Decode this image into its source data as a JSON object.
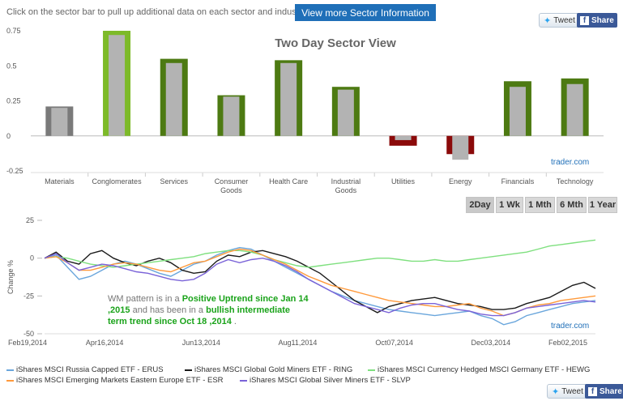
{
  "header": {
    "hint": "Click on the sector bar to pull up additional data on each sector and industry",
    "more_button": "View more Sector Information",
    "tweet_label": "Tweet",
    "share_label": "Share"
  },
  "footer": {
    "tweet_label": "Tweet",
    "share_label": "Share"
  },
  "range_buttons": [
    "2Day",
    "1 Wk",
    "1 Mth",
    "6 Mth",
    "1 Year"
  ],
  "annotation": {
    "part1": "WM  pattern is in a ",
    "part2": "Positive Uptrend since Jan 14 ,2015",
    "part3": " and has been in a ",
    "part4": "bullish intermediate term trend since Oct 18 ,2014",
    "part5": " ."
  },
  "colors": {
    "positive_bar": "#4d7a12",
    "highlight_bar": "#7dba29",
    "negative_bar": "#8b0a0a",
    "neutral_bar": "#7a7a7a",
    "inner_bar": "#b3b3b3",
    "button_blue": "#1f6fb8"
  },
  "chart_data": [
    {
      "type": "bar",
      "title": "Two Day Sector View",
      "watermark": "trader.com",
      "categories": [
        "Materials",
        "Conglomerates",
        "Services",
        "Consumer Goods",
        "Health Care",
        "Industrial Goods",
        "Utilities",
        "Energy",
        "Financials",
        "Technology"
      ],
      "values": [
        0.21,
        0.75,
        0.55,
        0.29,
        0.54,
        0.35,
        -0.07,
        -0.13,
        0.39,
        0.41
      ],
      "inner_values": [
        0.2,
        0.72,
        0.52,
        0.28,
        0.52,
        0.33,
        -0.03,
        -0.17,
        0.35,
        0.37
      ],
      "bar_styles": [
        "neutral",
        "highlight",
        "positive",
        "positive",
        "positive",
        "positive",
        "negative",
        "negative",
        "positive",
        "positive"
      ],
      "yticks": [
        "0.75",
        "0.5",
        "0.25",
        "0",
        "-0.25"
      ],
      "ylim": [
        -0.25,
        0.75
      ],
      "grid": false
    },
    {
      "type": "line",
      "ylabel": "Change %",
      "watermark": "trader.com",
      "ylim": [
        -50,
        25
      ],
      "yticks": [
        "25",
        "0",
        "-25",
        "-50"
      ],
      "xticks": [
        "Feb19,2014",
        "Apr16,2014",
        "Jun13,2014",
        "Aug11,2014",
        "Oct07,2014",
        "Dec03,2014",
        "Feb02,2015"
      ],
      "grid": false,
      "series": [
        {
          "name": "iShares MSCI Russia Capped ETF - ERUS",
          "color": "#6aa6dc",
          "values": [
            0,
            2,
            -6,
            -14,
            -12,
            -8,
            -4,
            -2,
            -4,
            -7,
            -10,
            -12,
            -8,
            -4,
            -2,
            2,
            5,
            7,
            6,
            2,
            -2,
            -6,
            -10,
            -14,
            -18,
            -22,
            -25,
            -28,
            -30,
            -32,
            -34,
            -35,
            -36,
            -37,
            -38,
            -37,
            -36,
            -35,
            -38,
            -40,
            -44,
            -42,
            -38,
            -36,
            -34,
            -32,
            -30,
            -29,
            -28
          ]
        },
        {
          "name": "iShares MSCI Global Gold Miners ETF - RING",
          "color": "#1a1a1a",
          "values": [
            0,
            4,
            -2,
            -4,
            3,
            5,
            0,
            -3,
            -5,
            -2,
            0,
            -3,
            -8,
            -10,
            -9,
            -2,
            2,
            1,
            4,
            5,
            3,
            1,
            -2,
            -6,
            -10,
            -16,
            -22,
            -28,
            -32,
            -36,
            -32,
            -30,
            -28,
            -27,
            -26,
            -28,
            -30,
            -31,
            -32,
            -34,
            -34,
            -33,
            -30,
            -28,
            -26,
            -22,
            -18,
            -16,
            -20
          ]
        },
        {
          "name": "iShares MSCI Currency Hedged MSCI Germany ETF - HEWG",
          "color": "#7fe07f",
          "values": [
            0,
            1,
            0,
            -2,
            -4,
            -5,
            -6,
            -5,
            -4,
            -3,
            -2,
            -1,
            0,
            1,
            3,
            4,
            5,
            5,
            4,
            2,
            -1,
            -3,
            -5,
            -6,
            -5,
            -4,
            -3,
            -2,
            -1,
            0,
            0,
            -1,
            -2,
            -2,
            -1,
            -2,
            -2,
            -1,
            0,
            1,
            2,
            3,
            4,
            6,
            8,
            9,
            10,
            11,
            12
          ]
        },
        {
          "name": "iShares MSCI Emerging Markets Eastern Europe ETF - ESR",
          "color": "#ff9a3c",
          "values": [
            0,
            1,
            -3,
            -8,
            -8,
            -6,
            -4,
            -3,
            -4,
            -6,
            -8,
            -9,
            -6,
            -3,
            -2,
            1,
            4,
            6,
            5,
            2,
            -1,
            -4,
            -8,
            -12,
            -15,
            -18,
            -20,
            -22,
            -24,
            -26,
            -28,
            -29,
            -30,
            -31,
            -32,
            -32,
            -31,
            -30,
            -33,
            -35,
            -38,
            -36,
            -33,
            -31,
            -30,
            -28,
            -27,
            -26,
            -25
          ]
        },
        {
          "name": "iShares MSCI Global Silver Miners ETF - SLVP",
          "color": "#7a63d8",
          "values": [
            0,
            3,
            -3,
            -8,
            -6,
            -4,
            -5,
            -7,
            -9,
            -10,
            -12,
            -14,
            -15,
            -14,
            -10,
            -4,
            -1,
            -3,
            -1,
            0,
            -2,
            -5,
            -9,
            -14,
            -18,
            -22,
            -26,
            -30,
            -32,
            -34,
            -36,
            -33,
            -31,
            -30,
            -30,
            -32,
            -34,
            -35,
            -37,
            -38,
            -38,
            -36,
            -33,
            -32,
            -31,
            -30,
            -29,
            -28,
            -29
          ]
        }
      ]
    }
  ]
}
